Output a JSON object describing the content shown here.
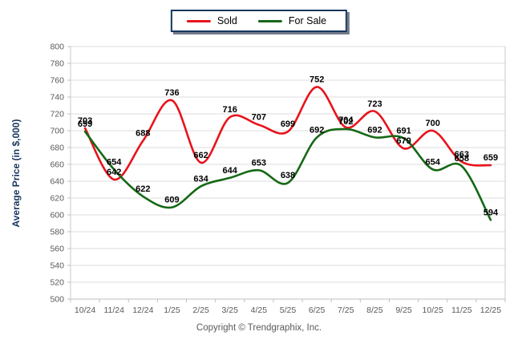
{
  "legend": {
    "items": [
      {
        "label": "Sold",
        "color": "#e8131c"
      },
      {
        "label": "For Sale",
        "color": "#156815"
      }
    ]
  },
  "footer": {
    "copyright": "Copyright © Trendgraphix, Inc."
  },
  "chart_data": {
    "type": "line",
    "title": "",
    "xlabel": "",
    "ylabel": "Average Price (in $,000)",
    "ylim": [
      500,
      800
    ],
    "ytick_step": 20,
    "grid": "horizontal",
    "legend_position": "top-center",
    "categories": [
      "10/24",
      "11/24",
      "12/24",
      "1/25",
      "2/25",
      "3/25",
      "4/25",
      "5/25",
      "6/25",
      "7/25",
      "8/25",
      "9/25",
      "10/25",
      "11/25",
      "12/25"
    ],
    "series": [
      {
        "name": "Sold",
        "color": "#e8131c",
        "values": [
          703,
          642,
          688,
          736,
          662,
          716,
          707,
          699,
          752,
          704,
          723,
          679,
          700,
          663,
          659
        ]
      },
      {
        "name": "For Sale",
        "color": "#156815",
        "values": [
          699,
          654,
          622,
          609,
          634,
          644,
          653,
          638,
          692,
          702,
          692,
          691,
          654,
          658,
          594
        ]
      }
    ]
  }
}
